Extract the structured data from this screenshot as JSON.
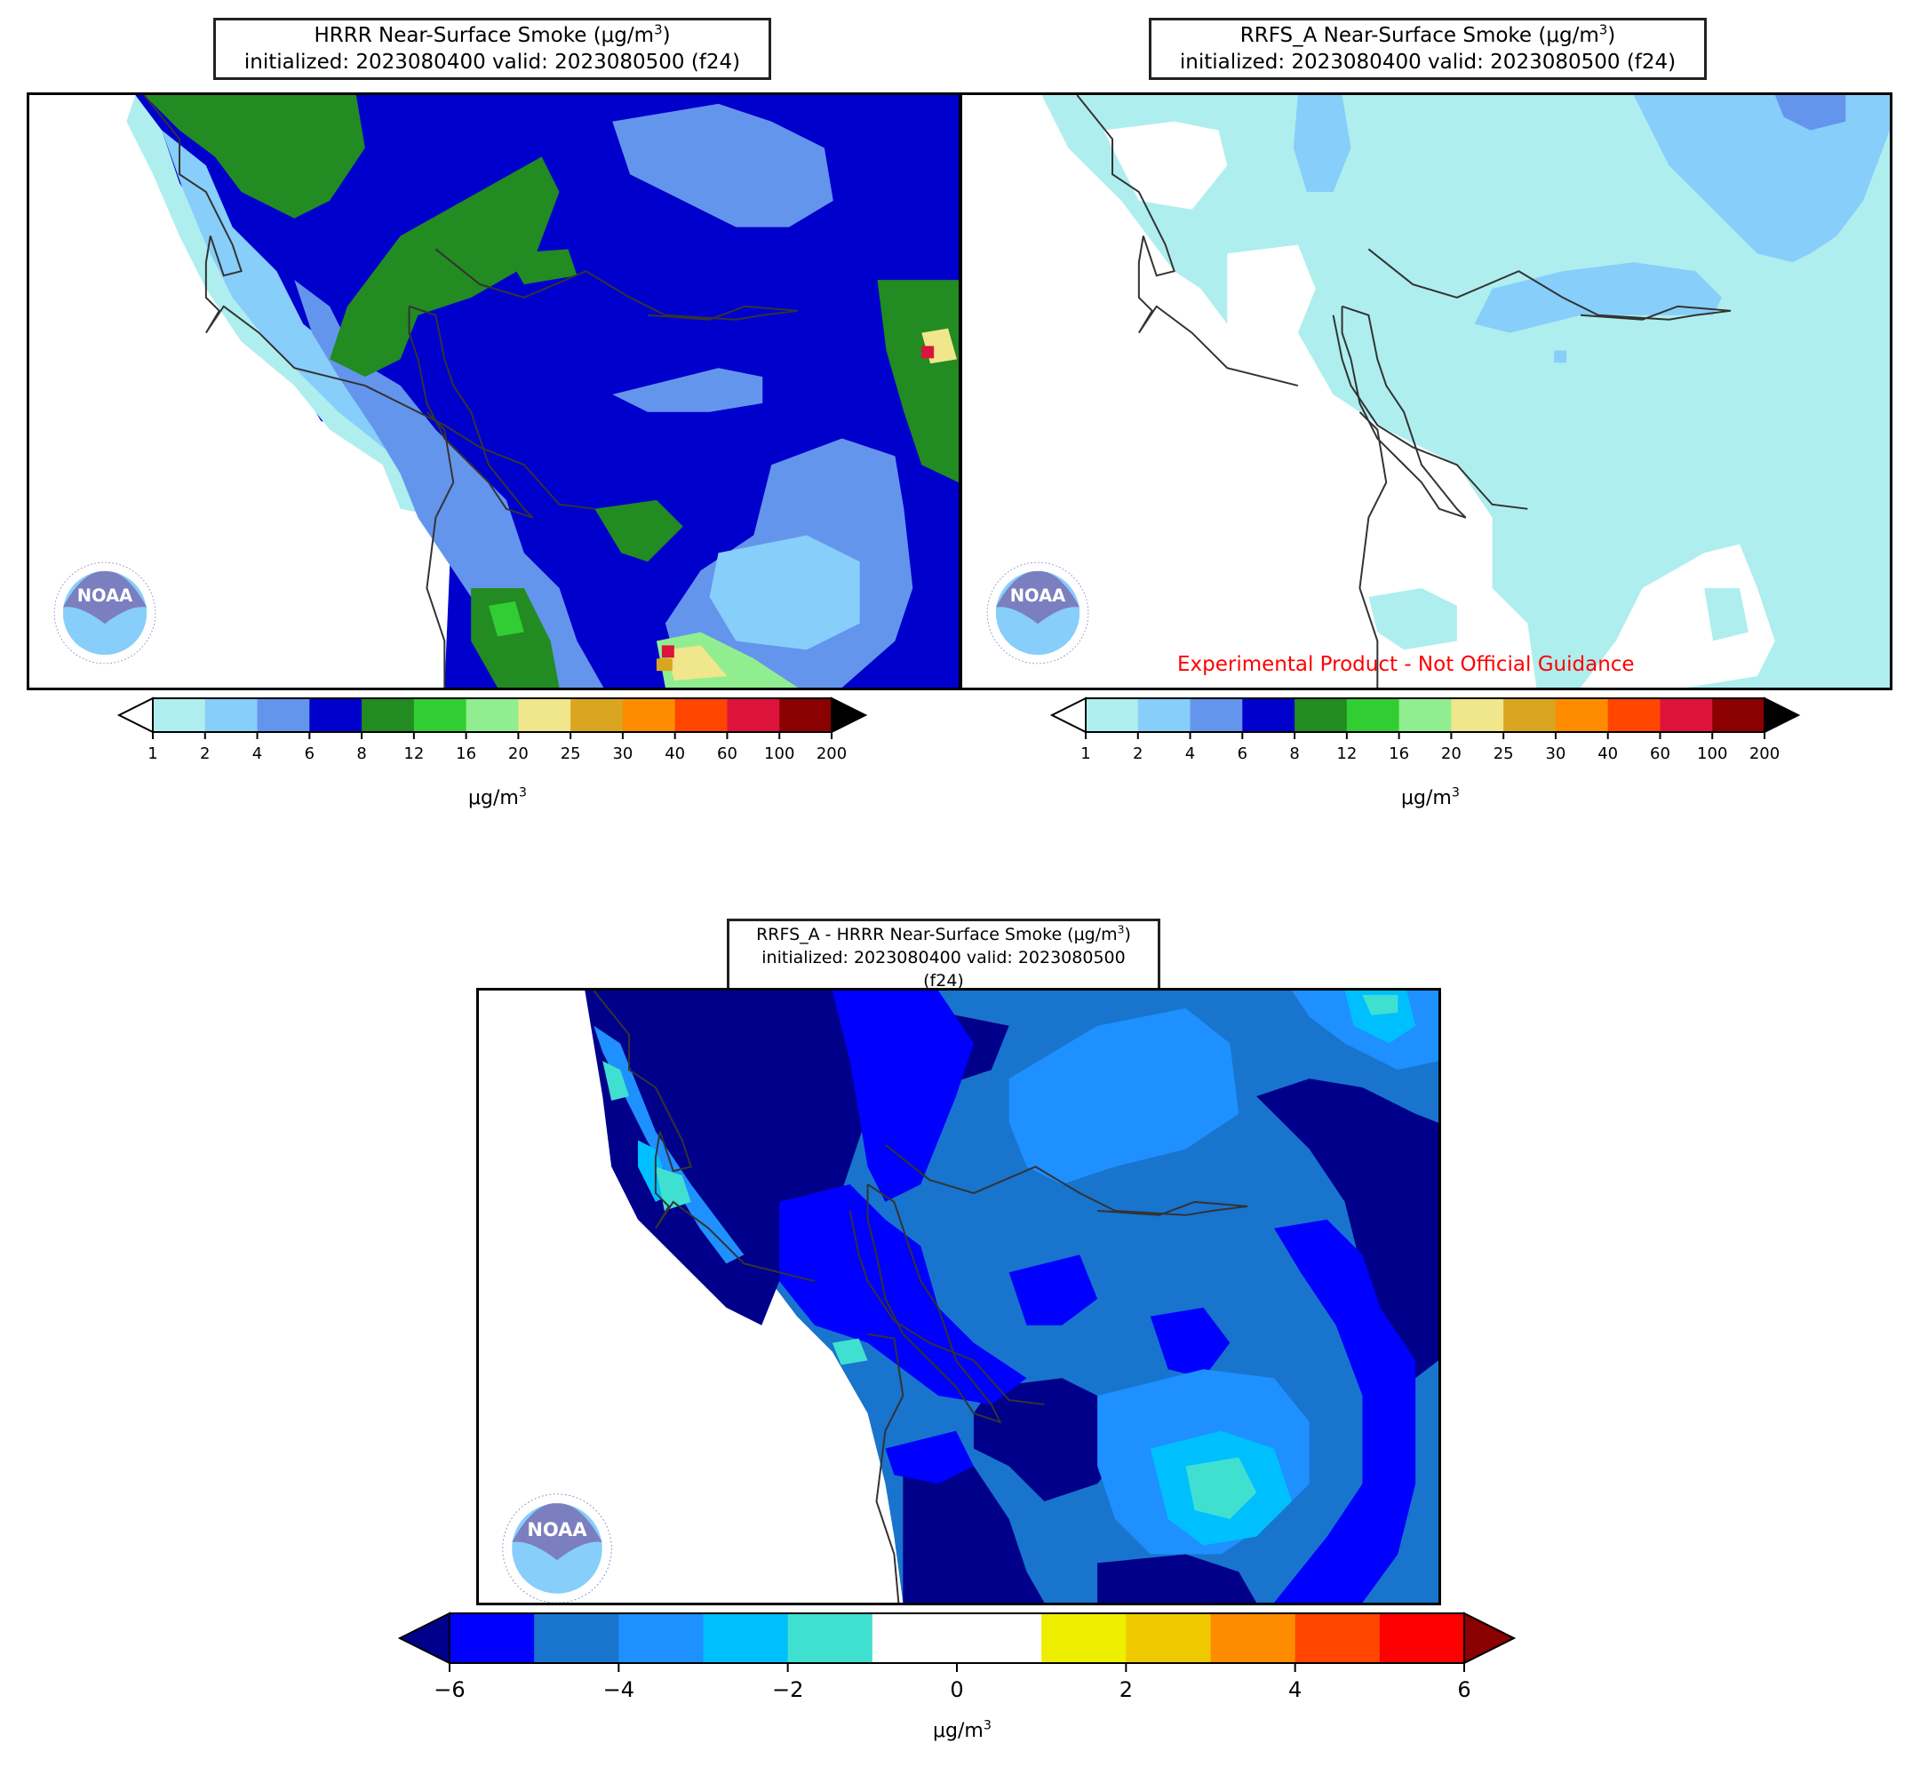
{
  "panels": [
    {
      "id": "hrrr",
      "title_main": "HRRR Near-Surface Smoke (μg/m",
      "title_sup": "3",
      "title_close": ")",
      "title_line2": "initialized: 2023080400 valid: 2023080500 (f24)"
    },
    {
      "id": "rrfs",
      "title_main": "RRFS_A Near-Surface Smoke (μg/m",
      "title_sup": "3",
      "title_close": ")",
      "title_line2": "initialized: 2023080400 valid: 2023080500 (f24)",
      "disclaimer": "Experimental Product - Not Official Guidance"
    },
    {
      "id": "diff",
      "title_main": "RRFS_A - HRRR Near-Surface Smoke (μg/m",
      "title_sup": "3",
      "title_close": ")",
      "title_line2": "initialized: 2023080400 valid: 2023080500 (f24)"
    }
  ],
  "smoke_colorbar": {
    "ticks": [
      "1",
      "2",
      "4",
      "6",
      "8",
      "12",
      "16",
      "20",
      "25",
      "30",
      "40",
      "60",
      "100",
      "200"
    ],
    "colors": [
      "#afeeee",
      "#87cefa",
      "#6495ed",
      "#0000cd",
      "#228b22",
      "#32cd32",
      "#90ee90",
      "#f0e68c",
      "#daa520",
      "#ff8c00",
      "#ff4500",
      "#dc143c",
      "#8b0000"
    ],
    "under_color": "#ffffff",
    "over_color": "#000000",
    "label_main": "μg/m",
    "label_sup": "3"
  },
  "diff_colorbar": {
    "ticks": [
      "−6",
      "−4",
      "−2",
      "0",
      "2",
      "4",
      "6"
    ],
    "colors": [
      "#0000ff",
      "#1874cd",
      "#1e90ff",
      "#00bfff",
      "#40e0d0",
      "#ffffff",
      "#ffffff",
      "#eeee00",
      "#eec900",
      "#ff8c00",
      "#ff4500",
      "#ff0000"
    ],
    "under_color": "#00008b",
    "over_color": "#8b0000",
    "label_main": "μg/m",
    "label_sup": "3"
  },
  "logo": {
    "text": "NOAA",
    "ring_text": "NATIONAL OCEANIC AND ATMOSPHERIC ADMINISTRATION · U.S. DEPARTMENT OF COMMERCE"
  }
}
